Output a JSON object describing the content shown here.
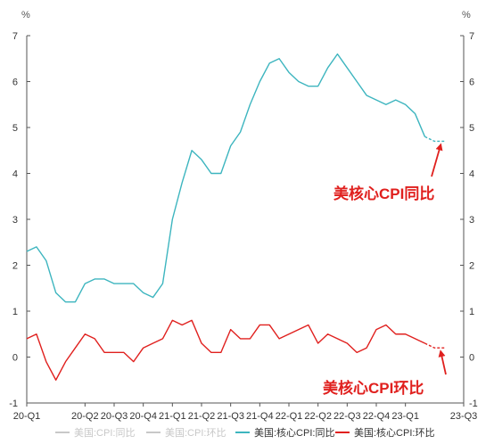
{
  "chart_data": {
    "type": "line",
    "y_unit_left": "%",
    "y_unit_right": "%",
    "ylim": [
      -1,
      7
    ],
    "y_ticks": [
      -1,
      0,
      1,
      2,
      3,
      4,
      5,
      6,
      7
    ],
    "x_tick_labels": [
      "20-Q1",
      "20-Q2",
      "20-Q3",
      "20-Q4",
      "21-Q1",
      "21-Q2",
      "21-Q3",
      "21-Q4",
      "22-Q1",
      "22-Q2",
      "22-Q3",
      "22-Q4",
      "23-Q1",
      "23-Q3"
    ],
    "x_tick_index": [
      0,
      6,
      9,
      12,
      15,
      18,
      21,
      24,
      27,
      30,
      33,
      36,
      39,
      45
    ],
    "grid": false,
    "legend_position": "bottom",
    "series": [
      {
        "name": "美国:CPI:同比",
        "color": "#c8c8c8",
        "hidden": true,
        "values": []
      },
      {
        "name": "美国:CPI:环比",
        "color": "#c8c8c8",
        "hidden": true,
        "values": []
      },
      {
        "name": "美国:核心CPI:同比",
        "color": "#3db5bf",
        "values": [
          2.3,
          2.4,
          2.1,
          1.4,
          1.2,
          1.2,
          1.6,
          1.7,
          1.7,
          1.6,
          1.6,
          1.6,
          1.4,
          1.3,
          1.6,
          3.0,
          3.8,
          4.5,
          4.3,
          4.0,
          4.0,
          4.6,
          4.9,
          5.5,
          6.0,
          6.4,
          6.5,
          6.2,
          6.0,
          5.9,
          5.9,
          6.3,
          6.6,
          6.3,
          6.0,
          5.7,
          5.6,
          5.5,
          5.6,
          5.5,
          5.3,
          4.8,
          4.7,
          4.7
        ],
        "dashed_from_index": 41
      },
      {
        "name": "美国:核心CPI:环比",
        "color": "#e0201e",
        "values": [
          0.4,
          0.5,
          -0.1,
          -0.5,
          -0.1,
          0.2,
          0.5,
          0.4,
          0.1,
          0.1,
          0.1,
          -0.1,
          0.2,
          0.3,
          0.4,
          0.8,
          0.7,
          0.8,
          0.3,
          0.1,
          0.1,
          0.6,
          0.4,
          0.4,
          0.7,
          0.7,
          0.4,
          0.5,
          0.6,
          0.7,
          0.3,
          0.5,
          0.4,
          0.3,
          0.1,
          0.2,
          0.6,
          0.7,
          0.5,
          0.5,
          0.4,
          0.3,
          0.2,
          0.2
        ],
        "dashed_from_index": 41
      }
    ],
    "annotations": [
      {
        "text": "美核心CPI同比",
        "target_series": 2
      },
      {
        "text": "美核心CPI环比",
        "target_series": 3
      }
    ]
  }
}
